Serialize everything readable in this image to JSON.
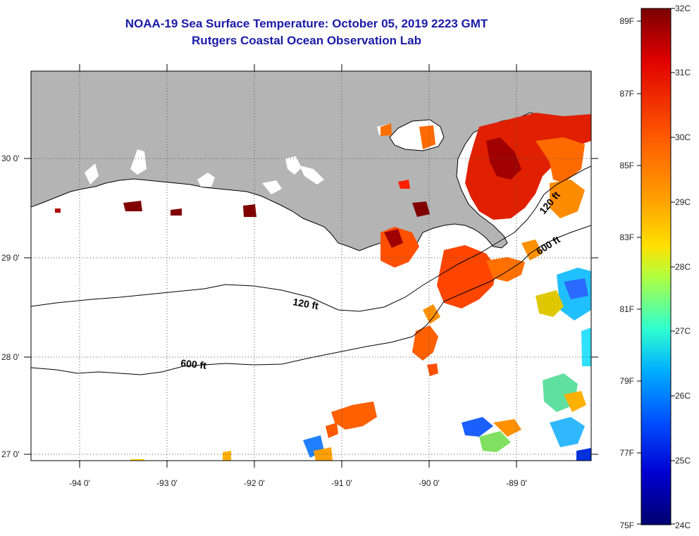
{
  "title": {
    "line1": "NOAA-19 Sea Surface Temperature:  October 05, 2019 2223 GMT",
    "line2": "Rutgers Coastal Ocean Observation Lab"
  },
  "colors": {
    "title": "#1a1aa6",
    "land": "#b4b4b4",
    "ocean_no_data": "#ffffff",
    "frame": "#000000"
  },
  "map": {
    "lon_ticks": [
      "-94 0'",
      "-93 0'",
      "-92 0'",
      "-91 0'",
      "-90 0'",
      "-89 0'"
    ],
    "lat_ticks": [
      "30 0'",
      "29 0'",
      "28 0'",
      "27 0'"
    ],
    "contours": [
      {
        "label": "120 ft"
      },
      {
        "label": "600 ft"
      },
      {
        "label": "120 ft"
      },
      {
        "label": "600 ft"
      }
    ],
    "grid": "dotted"
  },
  "colorbar": {
    "fahrenheit": [
      "89F",
      "87F",
      "85F",
      "83F",
      "81F",
      "79F",
      "77F",
      "75F"
    ],
    "celsius": [
      "32C",
      "31C",
      "30C",
      "29C",
      "28C",
      "27C",
      "26C",
      "25C",
      "24C"
    ],
    "stops": [
      "#7a0000",
      "#e00000",
      "#ff5000",
      "#ff9a00",
      "#ffd800",
      "#c8ff30",
      "#40ffc0",
      "#00c8ff",
      "#0060ff",
      "#0000e0",
      "#000080"
    ]
  }
}
